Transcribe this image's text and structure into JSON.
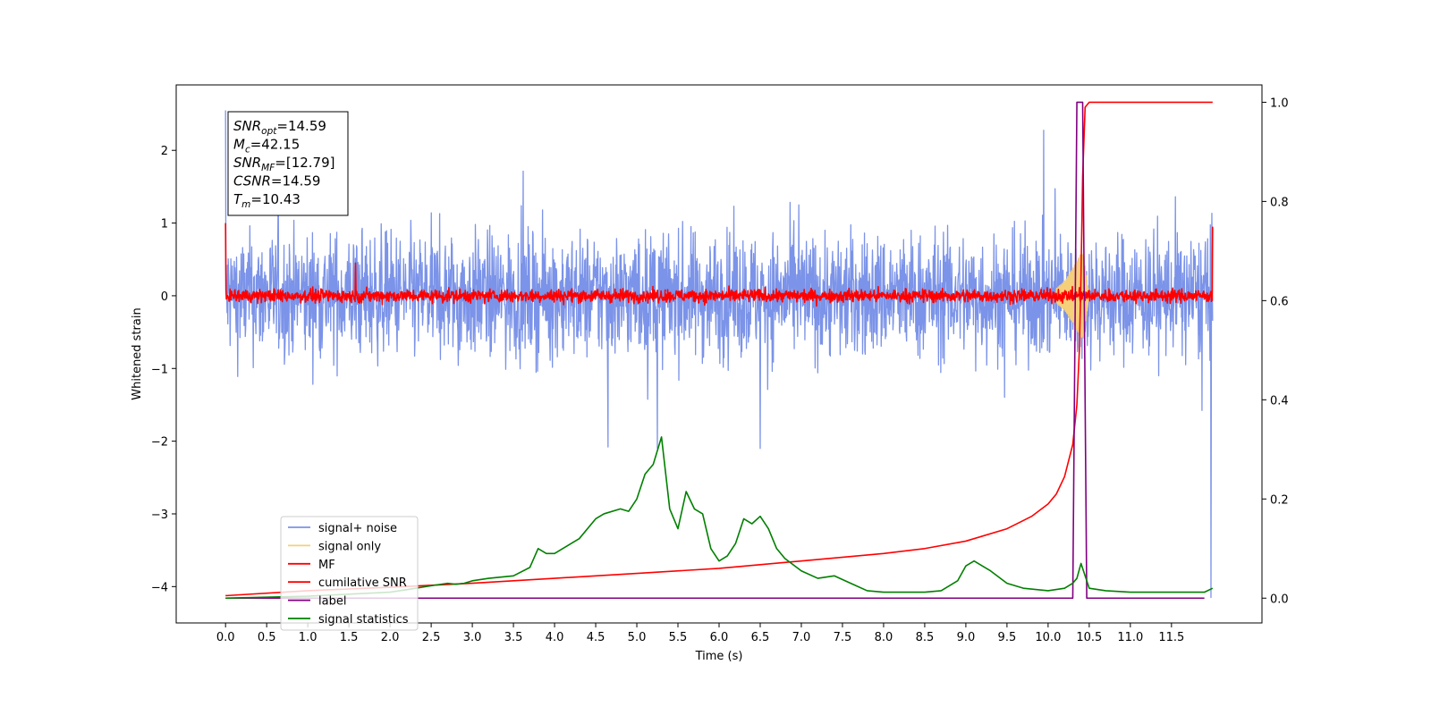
{
  "chart_data": {
    "type": "line",
    "xlabel": "Time (s)",
    "ylabel": "Whitened strain",
    "xlim": [
      -0.6,
      12.6
    ],
    "ylim": [
      -4.5,
      2.9
    ],
    "y2lim": [
      -0.05,
      1.035
    ],
    "grid": false,
    "legend_position": "lower-left",
    "x_ticks": [
      "0.0",
      "0.5",
      "1.0",
      "1.5",
      "2.0",
      "2.5",
      "3.0",
      "3.5",
      "4.0",
      "4.5",
      "5.0",
      "5.5",
      "6.0",
      "6.5",
      "7.0",
      "7.5",
      "8.0",
      "8.5",
      "9.0",
      "9.5",
      "10.0",
      "10.5",
      "11.0",
      "11.5"
    ],
    "y_ticks": [
      "−4",
      "−3",
      "−2",
      "−1",
      "0",
      "1",
      "2"
    ],
    "y2_ticks": [
      "0.0",
      "0.2",
      "0.4",
      "0.6",
      "0.8",
      "1.0"
    ],
    "annotation": [
      {
        "sym": "SNR",
        "sub": "opt",
        "value": "=14.59"
      },
      {
        "sym": "M",
        "sub": "c",
        "value": "=42.15"
      },
      {
        "sym": "SNR",
        "sub": "MF",
        "value": "=[12.79]"
      },
      {
        "sym": "CSNR",
        "sub": "",
        "value": "=14.59"
      },
      {
        "sym": "T",
        "sub": "m",
        "value": "=10.43"
      }
    ],
    "series": [
      {
        "name": "signal+ noise",
        "color": "#7b93e8",
        "axis": "left",
        "style": "noise",
        "x_range": [
          0.0,
          12.0
        ],
        "envelope": 0.95,
        "spikes": [
          [
            0.0,
            2.55
          ],
          [
            11.98,
            -4.15
          ],
          [
            5.25,
            -2.1
          ],
          [
            6.5,
            -2.1
          ],
          [
            4.65,
            -2.08
          ]
        ]
      },
      {
        "name": "signal only",
        "color": "#f5cf7a",
        "axis": "left",
        "style": "chirp",
        "x": [
          10.1,
          10.2,
          10.3,
          10.38,
          10.43,
          10.5
        ],
        "amplitude": [
          0.1,
          0.2,
          0.38,
          0.55,
          0.6,
          0.0
        ]
      },
      {
        "name": "MF",
        "color": "#ff0000",
        "axis": "left",
        "style": "noise",
        "x_range": [
          0.0,
          12.0
        ],
        "envelope": 0.1,
        "spikes": [
          [
            0.0,
            1.0
          ],
          [
            1.58,
            0.45
          ],
          [
            12.0,
            0.95
          ]
        ]
      },
      {
        "name": "cumilative SNR",
        "color": "#ff0000",
        "axis": "right",
        "x": [
          0.0,
          1.0,
          2.0,
          3.0,
          4.0,
          5.0,
          6.0,
          7.0,
          8.0,
          8.5,
          9.0,
          9.5,
          9.8,
          10.0,
          10.1,
          10.2,
          10.3,
          10.35,
          10.38,
          10.4,
          10.42,
          10.45,
          10.5,
          11.0,
          11.5,
          12.0
        ],
        "y": [
          0.005,
          0.015,
          0.022,
          0.03,
          0.04,
          0.05,
          0.06,
          0.075,
          0.09,
          0.1,
          0.115,
          0.14,
          0.165,
          0.19,
          0.21,
          0.245,
          0.31,
          0.39,
          0.5,
          0.65,
          0.85,
          0.99,
          1.0,
          1.0,
          1.0,
          1.0
        ]
      },
      {
        "name": "label",
        "color": "#800080",
        "axis": "right",
        "x": [
          0.0,
          10.3,
          10.35,
          10.42,
          10.47,
          11.9
        ],
        "y": [
          0.0,
          0.0,
          1.0,
          1.0,
          0.0,
          0.0
        ]
      },
      {
        "name": "signal statistics",
        "color": "#008000",
        "axis": "right",
        "x": [
          0.0,
          0.5,
          1.0,
          1.5,
          2.0,
          2.2,
          2.5,
          2.7,
          2.8,
          2.9,
          3.0,
          3.2,
          3.5,
          3.7,
          3.8,
          3.9,
          4.0,
          4.2,
          4.3,
          4.5,
          4.6,
          4.8,
          4.9,
          5.0,
          5.1,
          5.2,
          5.3,
          5.4,
          5.5,
          5.6,
          5.7,
          5.8,
          5.9,
          6.0,
          6.1,
          6.2,
          6.3,
          6.4,
          6.5,
          6.6,
          6.7,
          6.8,
          7.0,
          7.2,
          7.4,
          7.6,
          7.8,
          8.0,
          8.2,
          8.5,
          8.7,
          8.9,
          9.0,
          9.1,
          9.3,
          9.5,
          9.7,
          10.0,
          10.2,
          10.3,
          10.35,
          10.4,
          10.5,
          10.7,
          11.0,
          11.5,
          11.9,
          12.0
        ],
        "y": [
          0.0,
          0.002,
          0.004,
          0.008,
          0.012,
          0.017,
          0.025,
          0.03,
          0.028,
          0.03,
          0.035,
          0.04,
          0.045,
          0.062,
          0.1,
          0.09,
          0.09,
          0.11,
          0.12,
          0.16,
          0.17,
          0.18,
          0.175,
          0.2,
          0.25,
          0.27,
          0.325,
          0.18,
          0.14,
          0.215,
          0.18,
          0.17,
          0.1,
          0.075,
          0.085,
          0.11,
          0.16,
          0.15,
          0.165,
          0.14,
          0.1,
          0.08,
          0.055,
          0.04,
          0.045,
          0.03,
          0.015,
          0.012,
          0.012,
          0.012,
          0.015,
          0.035,
          0.065,
          0.075,
          0.055,
          0.03,
          0.02,
          0.015,
          0.02,
          0.03,
          0.04,
          0.07,
          0.02,
          0.015,
          0.012,
          0.012,
          0.012,
          0.02
        ]
      }
    ]
  }
}
